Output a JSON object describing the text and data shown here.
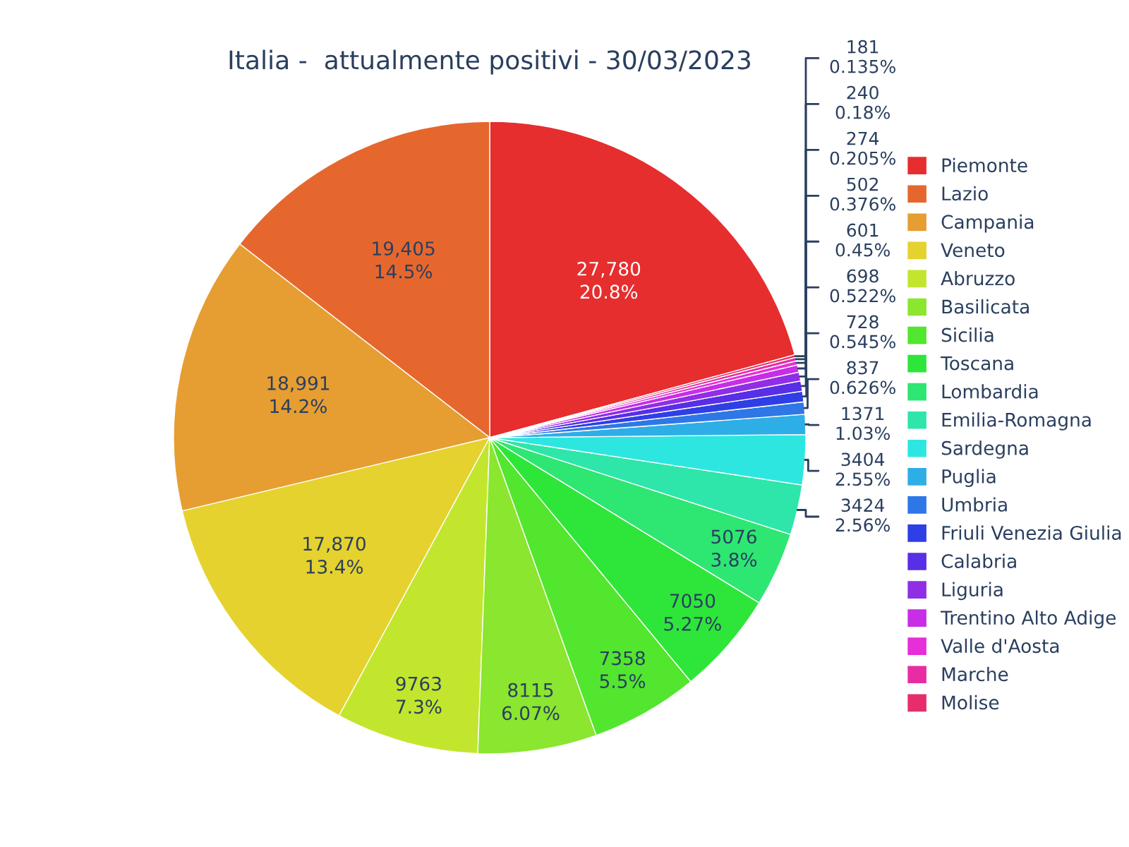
{
  "chart_data": {
    "type": "pie",
    "title": "Italia -  attualmente positivi - 30/03/2023",
    "categories": [
      "Piemonte",
      "Lazio",
      "Campania",
      "Veneto",
      "Abruzzo",
      "Basilicata",
      "Sicilia",
      "Toscana",
      "Lombardia",
      "Emilia-Romagna",
      "Sardegna",
      "Puglia",
      "Umbria",
      "Friuli Venezia Giulia",
      "Calabria",
      "Liguria",
      "Trentino Alto Adige",
      "Valle d'Aosta",
      "Marche",
      "Molise"
    ],
    "values": [
      27780,
      19405,
      18991,
      17870,
      9763,
      8115,
      7358,
      7050,
      5076,
      3424,
      3404,
      1371,
      837,
      728,
      698,
      601,
      502,
      274,
      240,
      181
    ],
    "value_labels": [
      "27,780\n20.8%",
      "19,405\n14.5%",
      "18,991\n14.2%",
      "17,870\n13.4%",
      "9763\n7.3%",
      "8115\n6.07%",
      "7358\n5.5%",
      "7050\n5.27%",
      "5076\n3.8%",
      "3424\n2.56%",
      "3404\n2.55%",
      "1371\n1.03%",
      "837\n0.626%",
      "728\n0.545%",
      "698\n0.522%",
      "601\n0.45%",
      "502\n0.376%",
      "274\n0.205%",
      "240\n0.18%",
      "181\n0.135%"
    ],
    "colors": [
      "#e62e2e",
      "#e6672e",
      "#e69e32",
      "#e5d22e",
      "#c2e62e",
      "#8ae62e",
      "#52e62e",
      "#2ee63a",
      "#2ee672",
      "#2ee6a9",
      "#2ee6e0",
      "#2eaee6",
      "#2e77e6",
      "#2e3fe6",
      "#582ee6",
      "#902ee6",
      "#c72ee6",
      "#e62ed9",
      "#e62ea2",
      "#e62e6b"
    ],
    "legend": "right"
  }
}
